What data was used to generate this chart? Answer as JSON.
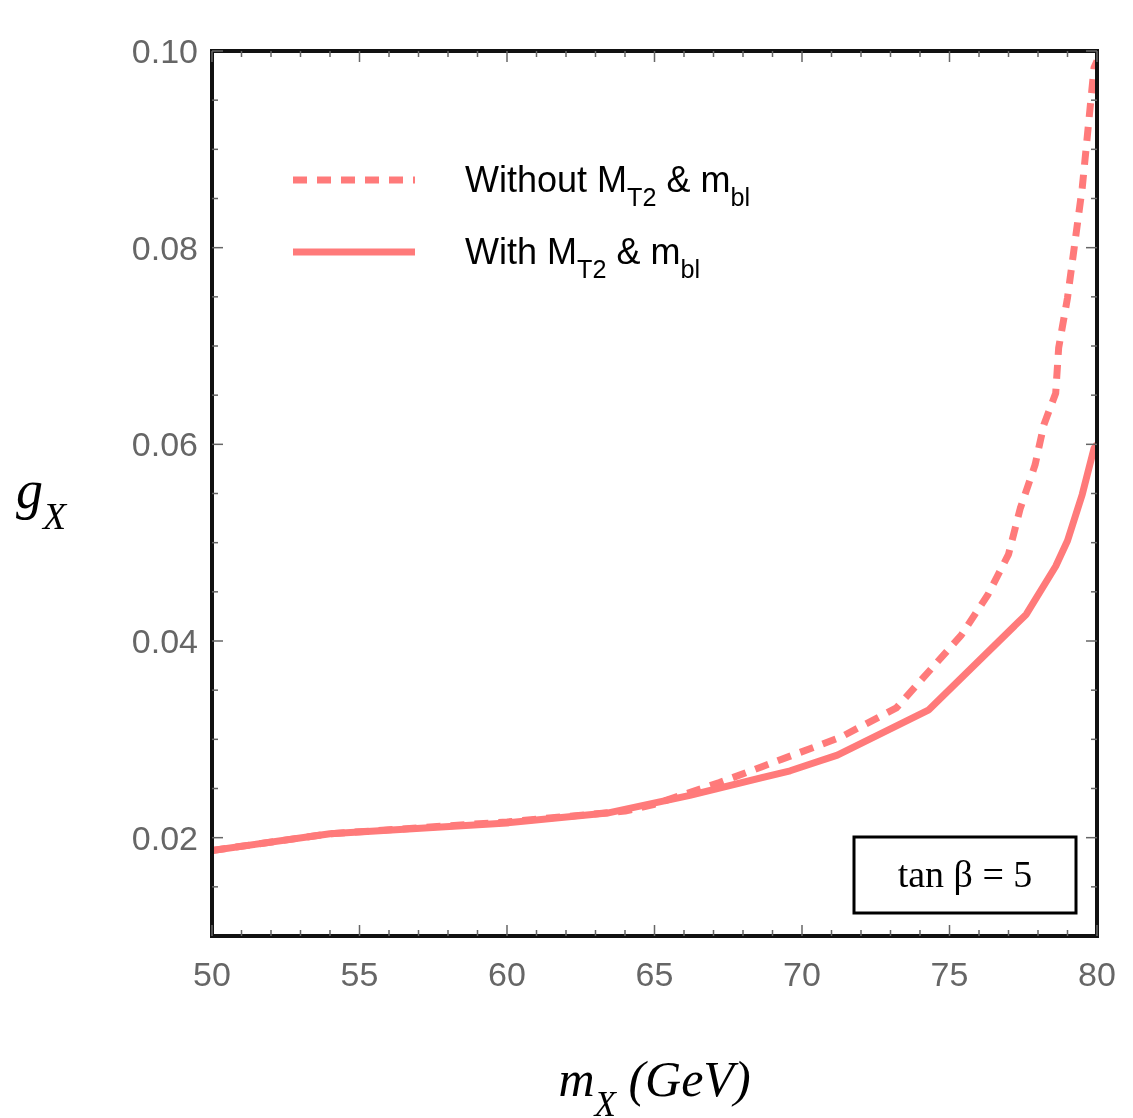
{
  "chart_data": {
    "type": "line",
    "xlabel": "m$_{X}$ (GeV)",
    "ylabel": "g$_{X}$",
    "xlim": [
      50,
      80
    ],
    "ylim": [
      0.01,
      0.1
    ],
    "xticks": [
      50,
      {
        "value": 51,
        "label": null
      },
      {
        "value": 52,
        "label": null
      },
      {
        "value": 53,
        "label": null
      },
      {
        "value": 54,
        "label": null
      },
      55,
      {
        "value": 56,
        "label": null
      },
      {
        "value": 57,
        "label": null
      },
      {
        "value": 58,
        "label": null
      },
      {
        "value": 59,
        "label": null
      },
      60,
      {
        "value": 61,
        "label": null
      },
      {
        "value": 62,
        "label": null
      },
      {
        "value": 63,
        "label": null
      },
      {
        "value": 64,
        "label": null
      },
      65,
      {
        "value": 66,
        "label": null
      },
      {
        "value": 67,
        "label": null
      },
      {
        "value": 68,
        "label": null
      },
      {
        "value": 69,
        "label": null
      },
      70,
      {
        "value": 71,
        "label": null
      },
      {
        "value": 72,
        "label": null
      },
      {
        "value": 73,
        "label": null
      },
      {
        "value": 74,
        "label": null
      },
      75,
      {
        "value": 76,
        "label": null
      },
      {
        "value": 77,
        "label": null
      },
      {
        "value": 78,
        "label": null
      },
      {
        "value": 79,
        "label": null
      },
      80
    ],
    "yticks": [
      {
        "value": 0.015,
        "label": null
      },
      {
        "value": 0.02,
        "label": "0.02"
      },
      {
        "value": 0.025,
        "label": null
      },
      {
        "value": 0.03,
        "label": null
      },
      {
        "value": 0.035,
        "label": null
      },
      {
        "value": 0.04,
        "label": "0.04"
      },
      {
        "value": 0.045,
        "label": null
      },
      {
        "value": 0.05,
        "label": null
      },
      {
        "value": 0.055,
        "label": null
      },
      {
        "value": 0.06,
        "label": "0.06"
      },
      {
        "value": 0.065,
        "label": null
      },
      {
        "value": 0.07,
        "label": null
      },
      {
        "value": 0.075,
        "label": null
      },
      {
        "value": 0.08,
        "label": "0.08"
      },
      {
        "value": 0.085,
        "label": null
      },
      {
        "value": 0.09,
        "label": null
      },
      {
        "value": 0.095,
        "label": null
      },
      {
        "value": 0.1,
        "label": "0.10"
      }
    ],
    "grid": false,
    "legend": "top left",
    "annotations": [
      "tan β = 5"
    ],
    "series": [
      {
        "name": "Without M$_{T2}$ & m$_{bl}$",
        "color": "#ff7a7a",
        "line_style": "dashed",
        "x": [
          50,
          54,
          60,
          64,
          65,
          67.2,
          71.3,
          73.2,
          75.4,
          76.3,
          77,
          77.4,
          77.9,
          78.2,
          78.6,
          78.7,
          79,
          79.5,
          79.9,
          80
        ],
        "values": [
          0.0187,
          0.0204,
          0.0216,
          0.0227,
          0.0234,
          0.0256,
          0.0302,
          0.0332,
          0.0406,
          0.0447,
          0.0488,
          0.0535,
          0.0579,
          0.062,
          0.0652,
          0.0698,
          0.0749,
          0.0861,
          0.0983,
          0.099
        ]
      },
      {
        "name": "With M$_{T2}$ & m$_{bl}$",
        "color": "#ff7a7a",
        "line_style": "solid",
        "x": [
          50,
          54,
          60,
          63.4,
          66.2,
          69.6,
          71.2,
          74.3,
          77.6,
          78.6,
          79,
          79.5,
          79.9,
          80
        ],
        "values": [
          0.0187,
          0.0204,
          0.0215,
          0.0225,
          0.0243,
          0.0268,
          0.0284,
          0.033,
          0.0427,
          0.0476,
          0.0502,
          0.0549,
          0.0596,
          0.06
        ]
      }
    ]
  }
}
